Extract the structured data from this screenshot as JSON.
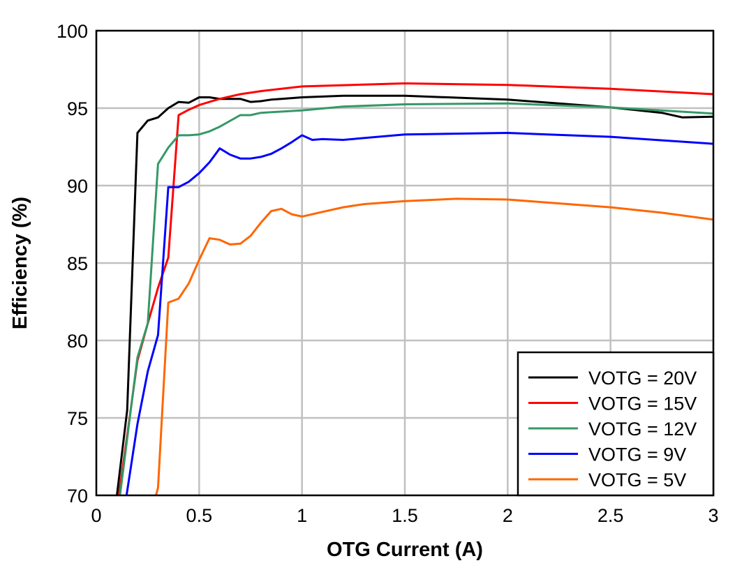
{
  "chart_data": {
    "type": "line",
    "title": "",
    "xlabel": "OTG Current (A)",
    "ylabel": "Efficiency (%)",
    "xlim": [
      0,
      3
    ],
    "ylim": [
      70,
      100
    ],
    "xticks": [
      0,
      0.5,
      1,
      1.5,
      2,
      2.5,
      3
    ],
    "xtick_labels": [
      "0",
      "0.5",
      "1",
      "1.5",
      "2",
      "2.5",
      "3"
    ],
    "yticks": [
      70,
      75,
      80,
      85,
      90,
      95,
      100
    ],
    "ytick_labels": [
      "70",
      "75",
      "80",
      "85",
      "90",
      "95",
      "100"
    ],
    "grid": true,
    "legend_position": "bottom-right",
    "series": [
      {
        "name": "VOTG = 20V",
        "color": "#000000",
        "x": [
          0.1,
          0.15,
          0.2,
          0.25,
          0.3,
          0.35,
          0.4,
          0.45,
          0.5,
          0.55,
          0.6,
          0.7,
          0.75,
          0.8,
          0.85,
          0.9,
          1.0,
          1.2,
          1.5,
          2.0,
          2.5,
          2.75,
          2.85,
          3.0
        ],
        "y": [
          70,
          75.5,
          93.4,
          94.2,
          94.4,
          95.0,
          95.4,
          95.35,
          95.7,
          95.7,
          95.6,
          95.6,
          95.4,
          95.45,
          95.55,
          95.6,
          95.7,
          95.8,
          95.8,
          95.55,
          95.05,
          94.7,
          94.4,
          94.45
        ]
      },
      {
        "name": "VOTG = 15V",
        "color": "#ff0000",
        "x": [
          0.11,
          0.2,
          0.25,
          0.3,
          0.35,
          0.4,
          0.45,
          0.5,
          0.55,
          0.6,
          0.7,
          0.8,
          1.0,
          1.5,
          2.0,
          2.5,
          3.0
        ],
        "y": [
          70,
          78.7,
          81.1,
          83.4,
          85.35,
          94.55,
          94.9,
          95.2,
          95.4,
          95.6,
          95.9,
          96.1,
          96.4,
          96.6,
          96.5,
          96.25,
          95.9
        ]
      },
      {
        "name": "VOTG = 12V",
        "color": "#339966",
        "x": [
          0.115,
          0.2,
          0.25,
          0.3,
          0.35,
          0.4,
          0.45,
          0.5,
          0.55,
          0.6,
          0.7,
          0.75,
          0.8,
          1.0,
          1.2,
          1.5,
          2.0,
          2.5,
          3.0
        ],
        "y": [
          70,
          78.9,
          81.1,
          91.4,
          92.45,
          93.25,
          93.25,
          93.3,
          93.5,
          93.8,
          94.55,
          94.55,
          94.7,
          94.85,
          95.1,
          95.25,
          95.3,
          95.05,
          94.65
        ]
      },
      {
        "name": "VOTG = 9V",
        "color": "#0000ff",
        "x": [
          0.147,
          0.2,
          0.25,
          0.3,
          0.35,
          0.4,
          0.45,
          0.5,
          0.55,
          0.6,
          0.65,
          0.7,
          0.75,
          0.8,
          0.85,
          0.9,
          0.95,
          1.0,
          1.05,
          1.1,
          1.2,
          1.5,
          2.0,
          2.5,
          3.0
        ],
        "y": [
          70,
          74.6,
          78,
          80.35,
          89.9,
          89.9,
          90.25,
          90.8,
          91.5,
          92.4,
          92.0,
          91.75,
          91.75,
          91.85,
          92.05,
          92.4,
          92.8,
          93.25,
          92.95,
          93.0,
          92.95,
          93.3,
          93.4,
          93.15,
          92.7
        ]
      },
      {
        "name": "VOTG = 5V",
        "color": "#ff6600",
        "x": [
          0.29,
          0.3,
          0.35,
          0.4,
          0.45,
          0.5,
          0.55,
          0.6,
          0.65,
          0.7,
          0.75,
          0.8,
          0.85,
          0.9,
          0.95,
          1.0,
          1.1,
          1.2,
          1.3,
          1.5,
          1.75,
          2.0,
          2.5,
          2.75,
          3.0
        ],
        "y": [
          70,
          70.5,
          82.45,
          82.7,
          83.7,
          85.2,
          86.6,
          86.5,
          86.2,
          86.25,
          86.75,
          87.6,
          88.35,
          88.5,
          88.15,
          88.0,
          88.3,
          88.6,
          88.8,
          89.0,
          89.15,
          89.1,
          88.6,
          88.25,
          87.8
        ]
      }
    ]
  }
}
